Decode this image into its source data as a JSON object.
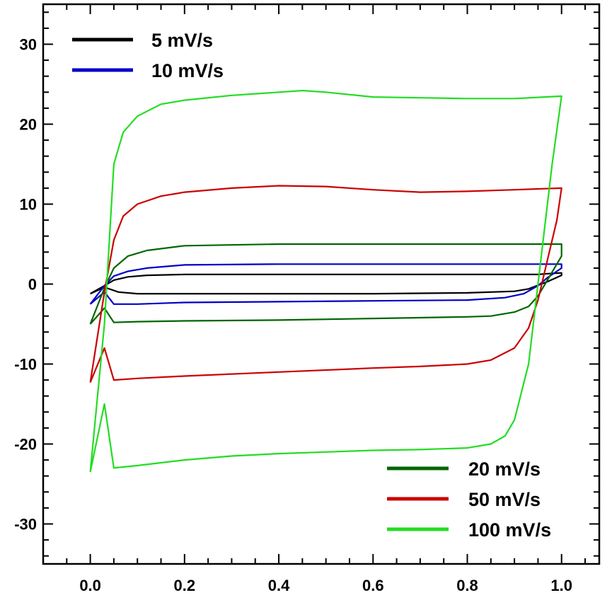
{
  "chart_data": {
    "type": "line",
    "title": "",
    "xlabel": "",
    "ylabel": "",
    "xlim": [
      -0.1,
      1.08
    ],
    "ylim": [
      -35,
      35
    ],
    "x_ticks": [
      0.0,
      0.2,
      0.4,
      0.6,
      0.8,
      1.0
    ],
    "x_tick_labels": [
      "0.0",
      "0.2",
      "0.4",
      "0.6",
      "0.8",
      "1.0"
    ],
    "y_ticks": [
      -30,
      -20,
      -10,
      0,
      10,
      20,
      30
    ],
    "y_tick_labels": [
      "-30",
      "-20",
      "-10",
      "0",
      "10",
      "20",
      "30"
    ],
    "x_minor_step": 0.05,
    "y_minor_step": 2,
    "grid": false,
    "legend": [
      {
        "placement": "top-left",
        "entries": [
          "5 mV/s",
          "10 mV/s"
        ]
      },
      {
        "placement": "bottom-right",
        "entries": [
          "20 mV/s",
          "50 mV/s",
          "100 mV/s"
        ]
      }
    ],
    "series": [
      {
        "name": "5 mV/s",
        "color": "#000000",
        "x": [
          0.0,
          0.03,
          0.05,
          0.08,
          0.12,
          0.2,
          0.4,
          0.6,
          0.8,
          0.9,
          0.93,
          0.95,
          0.97,
          1.0,
          1.0,
          0.97,
          0.93,
          0.9,
          0.8,
          0.6,
          0.4,
          0.2,
          0.1,
          0.06,
          0.03,
          0.0
        ],
        "y": [
          -1.2,
          -0.2,
          0.5,
          0.9,
          1.1,
          1.2,
          1.2,
          1.2,
          1.2,
          1.2,
          1.2,
          1.2,
          1.3,
          1.4,
          1.1,
          0.3,
          -0.6,
          -0.9,
          -1.1,
          -1.2,
          -1.2,
          -1.2,
          -1.2,
          -1.0,
          -0.4,
          -1.2
        ]
      },
      {
        "name": "10 mV/s",
        "color": "#0000c8",
        "x": [
          0.0,
          0.03,
          0.05,
          0.08,
          0.12,
          0.2,
          0.4,
          0.6,
          0.8,
          0.9,
          0.95,
          0.98,
          1.0,
          1.0,
          0.97,
          0.95,
          0.92,
          0.88,
          0.8,
          0.6,
          0.4,
          0.2,
          0.1,
          0.05,
          0.03,
          0.0
        ],
        "y": [
          -2.5,
          -0.2,
          1.0,
          1.6,
          2.0,
          2.4,
          2.5,
          2.5,
          2.5,
          2.5,
          2.5,
          2.5,
          2.5,
          2.0,
          0.8,
          -0.2,
          -1.2,
          -1.7,
          -2.0,
          -2.1,
          -2.2,
          -2.3,
          -2.5,
          -2.5,
          -1.0,
          -2.5
        ]
      },
      {
        "name": "20 mV/s",
        "color": "#006600",
        "x": [
          0.0,
          0.03,
          0.05,
          0.08,
          0.12,
          0.2,
          0.4,
          0.6,
          0.8,
          0.9,
          0.95,
          0.98,
          1.0,
          1.0,
          0.97,
          0.95,
          0.93,
          0.9,
          0.85,
          0.8,
          0.6,
          0.4,
          0.2,
          0.1,
          0.05,
          0.03,
          0.0
        ],
        "y": [
          -5.0,
          -0.5,
          2.0,
          3.5,
          4.2,
          4.8,
          5.0,
          5.0,
          5.0,
          5.0,
          5.0,
          5.0,
          5.0,
          3.5,
          0.5,
          -1.5,
          -2.8,
          -3.5,
          -4.0,
          -4.1,
          -4.3,
          -4.5,
          -4.6,
          -4.7,
          -4.8,
          -3.0,
          -5.0
        ]
      },
      {
        "name": "50 mV/s",
        "color": "#cc0000",
        "x": [
          0.0,
          0.03,
          0.05,
          0.07,
          0.1,
          0.15,
          0.2,
          0.3,
          0.4,
          0.5,
          0.6,
          0.7,
          0.8,
          0.9,
          0.95,
          1.0,
          0.99,
          0.97,
          0.95,
          0.93,
          0.9,
          0.85,
          0.8,
          0.7,
          0.6,
          0.4,
          0.2,
          0.1,
          0.05,
          0.03,
          0.0
        ],
        "y": [
          -12.3,
          -1.0,
          5.5,
          8.5,
          10.0,
          11.0,
          11.5,
          12.0,
          12.3,
          12.2,
          11.8,
          11.5,
          11.6,
          11.8,
          11.9,
          12.0,
          8.0,
          3.0,
          -2.0,
          -5.5,
          -8.0,
          -9.5,
          -10.0,
          -10.3,
          -10.5,
          -11.0,
          -11.5,
          -11.8,
          -12.0,
          -8.0,
          -12.3
        ]
      },
      {
        "name": "100 mV/s",
        "color": "#22dd22",
        "x": [
          0.0,
          0.03,
          0.05,
          0.07,
          0.1,
          0.15,
          0.2,
          0.3,
          0.4,
          0.45,
          0.5,
          0.6,
          0.7,
          0.8,
          0.9,
          1.0,
          0.98,
          0.95,
          0.93,
          0.9,
          0.88,
          0.85,
          0.8,
          0.7,
          0.6,
          0.5,
          0.4,
          0.3,
          0.2,
          0.1,
          0.05,
          0.03,
          0.0
        ],
        "y": [
          -23.5,
          -5.0,
          15.0,
          19.0,
          21.0,
          22.5,
          23.0,
          23.6,
          24.0,
          24.2,
          24.0,
          23.4,
          23.3,
          23.2,
          23.2,
          23.5,
          15.0,
          0.0,
          -10.0,
          -17.0,
          -19.0,
          -20.0,
          -20.5,
          -20.7,
          -20.8,
          -21.0,
          -21.2,
          -21.5,
          -22.0,
          -22.7,
          -23.0,
          -15.0,
          -23.5
        ]
      }
    ]
  }
}
